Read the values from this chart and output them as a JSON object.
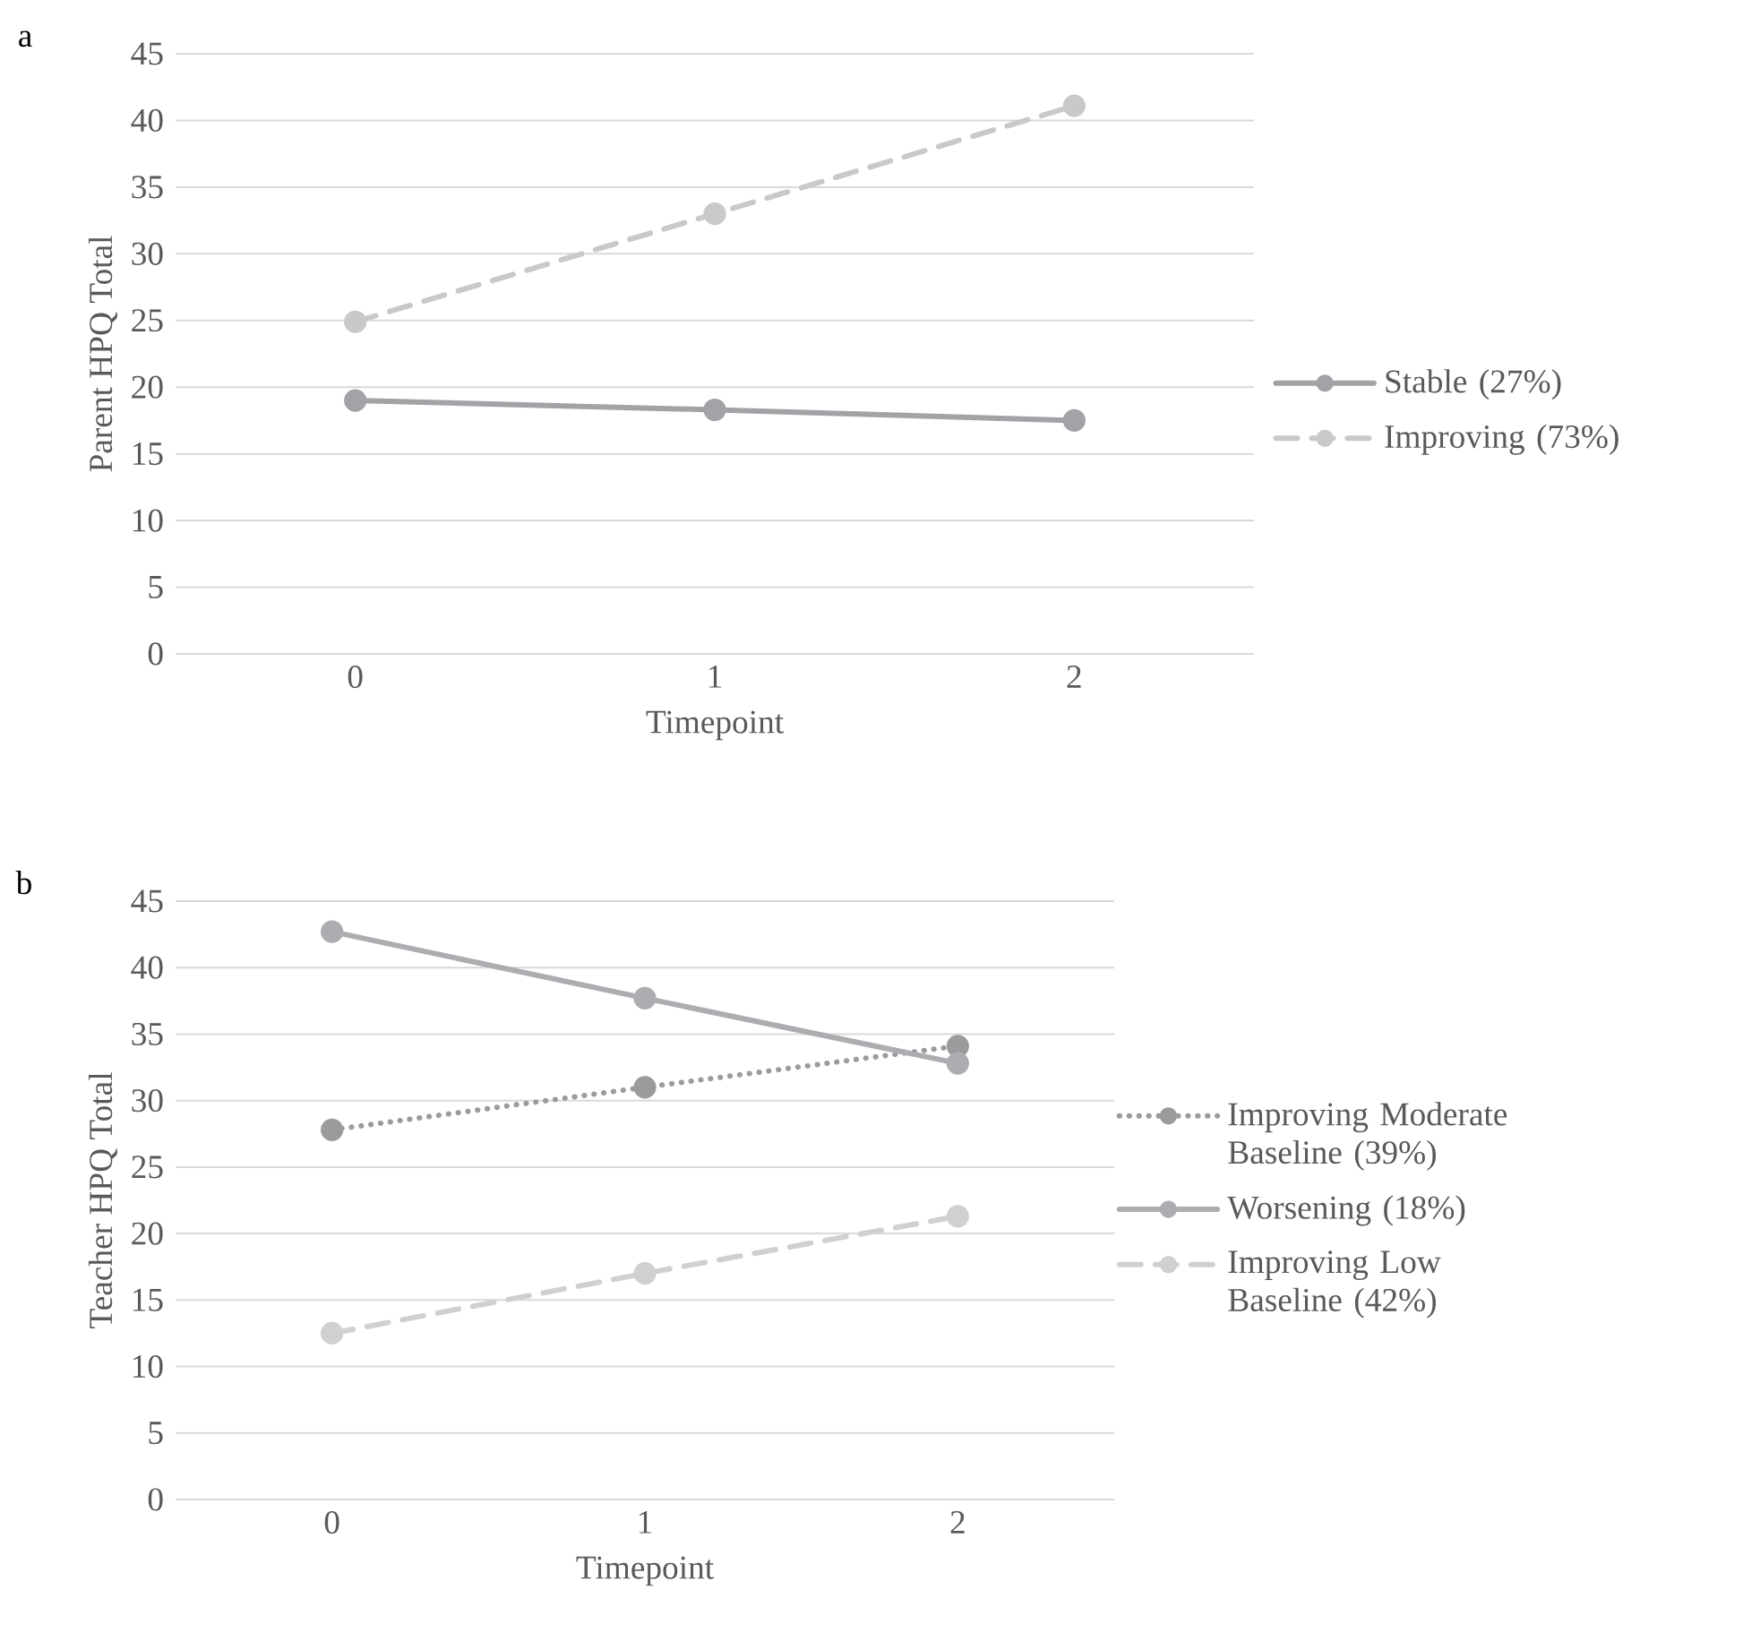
{
  "chart_data": [
    {
      "type": "line",
      "title": "a",
      "xlabel": "Timepoint",
      "ylabel": "Parent HPQ Total",
      "categories": [
        "0",
        "1",
        "2"
      ],
      "ylim": [
        0,
        45
      ],
      "yticks": [
        0,
        5,
        10,
        15,
        20,
        25,
        30,
        35,
        40,
        45
      ],
      "grid": "y",
      "legend": "right",
      "marker": "circle",
      "series": [
        {
          "name": "Stable (27%)",
          "color": "#a3a3a7",
          "line_style": "solid",
          "values": [
            19,
            18.3,
            17.5
          ]
        },
        {
          "name": "Improving (73%)",
          "color": "#c9c9c9",
          "line_style": "dashed",
          "values": [
            24.9,
            33,
            41.1
          ]
        }
      ]
    },
    {
      "type": "line",
      "title": "b",
      "xlabel": "Timepoint",
      "ylabel": "Teacher HPQ Total",
      "categories": [
        "0",
        "1",
        "2"
      ],
      "ylim": [
        0,
        45
      ],
      "yticks": [
        0,
        5,
        10,
        15,
        20,
        25,
        30,
        35,
        40,
        45
      ],
      "grid": "y",
      "legend": "right",
      "marker": "circle",
      "series": [
        {
          "name": "Improving Moderate Baseline (39%)",
          "color": "#9b9b9e",
          "line_style": "dotted",
          "values": [
            27.8,
            31,
            34.1
          ]
        },
        {
          "name": "Worsening (18%)",
          "color": "#adadb1",
          "line_style": "solid",
          "values": [
            42.7,
            37.7,
            32.8
          ]
        },
        {
          "name": "Improving Low Baseline (42%)",
          "color": "#d0d0d0",
          "line_style": "dashed",
          "values": [
            12.5,
            17,
            21.3
          ]
        }
      ]
    }
  ]
}
